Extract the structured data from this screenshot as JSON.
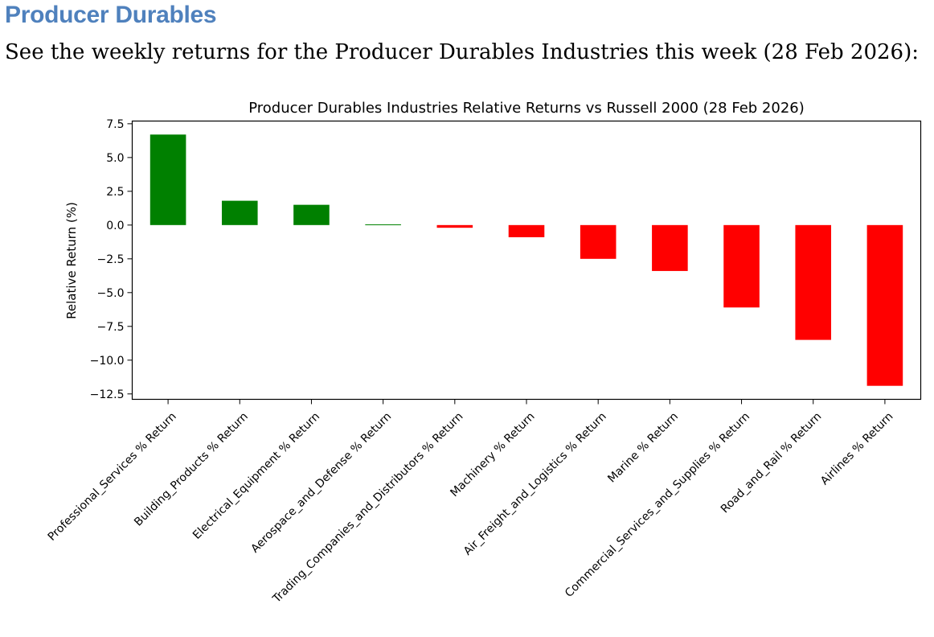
{
  "page": {
    "heading": "Producer Durables",
    "intro": "See the weekly returns for the Producer Durables Industries this week (28 Feb 2026):"
  },
  "colors": {
    "heading": "#4f81bd",
    "positive": "#008000",
    "negative": "#ff0000"
  },
  "chart_data": {
    "type": "bar",
    "title": "Producer Durables Industries Relative Returns vs Russell 2000 (28 Feb 2026)",
    "xlabel": "",
    "ylabel": "Relative Return (%)",
    "ylim": [
      -12.9,
      7.7
    ],
    "yticks": [
      7.5,
      5.0,
      2.5,
      0.0,
      -2.5,
      -5.0,
      -7.5,
      -10.0,
      -12.5
    ],
    "ytick_labels": [
      "7.5",
      "5.0",
      "2.5",
      "0.0",
      "−2.5",
      "−5.0",
      "−7.5",
      "−10.0",
      "−12.5"
    ],
    "grid": false,
    "legend": "none",
    "categories": [
      "Professional_Services % Return",
      "Building_Products % Return",
      "Electrical_Equipment % Return",
      "Aerospace_and_Defense % Return",
      "Trading_Companies_and_Distributors % Return",
      "Machinery % Return",
      "Air_Freight_and_Logistics % Return",
      "Marine % Return",
      "Commercial_Services_and_Supplies % Return",
      "Road_and_Rail % Return",
      "Airlines % Return"
    ],
    "values": [
      6.7,
      1.8,
      1.5,
      0.05,
      -0.2,
      -0.9,
      -2.5,
      -3.4,
      -6.1,
      -8.5,
      -11.9
    ]
  }
}
